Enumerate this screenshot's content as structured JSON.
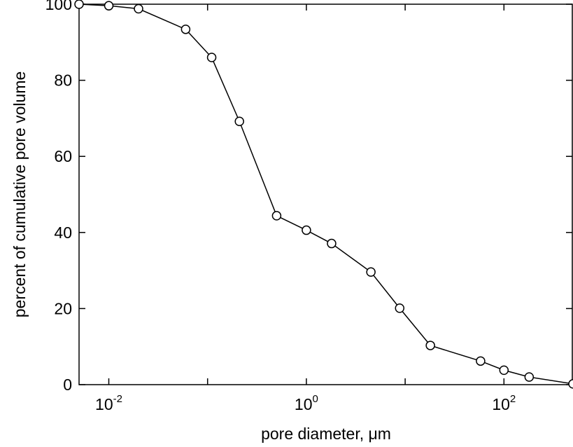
{
  "chart_data": {
    "type": "line",
    "xlabel": "pore diameter, μm",
    "ylabel": "percent of cumulative pore volume",
    "x_scale": "log",
    "xlim": [
      0.005,
      500
    ],
    "ylim": [
      0,
      100
    ],
    "grid": false,
    "legend": "none",
    "marker": "open-circle",
    "line_color": "#000000",
    "x_tick_labels": [
      {
        "value": 0.01,
        "base": "10",
        "exponent": "-2"
      },
      {
        "value": 1,
        "base": "10",
        "exponent": "0"
      },
      {
        "value": 100,
        "base": "10",
        "exponent": "2"
      }
    ],
    "y_tick_labels": [
      "0",
      "20",
      "40",
      "60",
      "80",
      "100"
    ],
    "series": [
      {
        "x": [
          0.005,
          0.01,
          0.02,
          0.06,
          0.11,
          0.21,
          0.5,
          1.0,
          1.8,
          4.5,
          8.8,
          18,
          58,
          100,
          180,
          500
        ],
        "y": [
          100,
          99.6,
          98.8,
          93.4,
          86,
          69.2,
          44.4,
          40.6,
          37.1,
          29.6,
          20.1,
          10.3,
          6.2,
          3.8,
          2,
          0.2
        ]
      }
    ]
  }
}
